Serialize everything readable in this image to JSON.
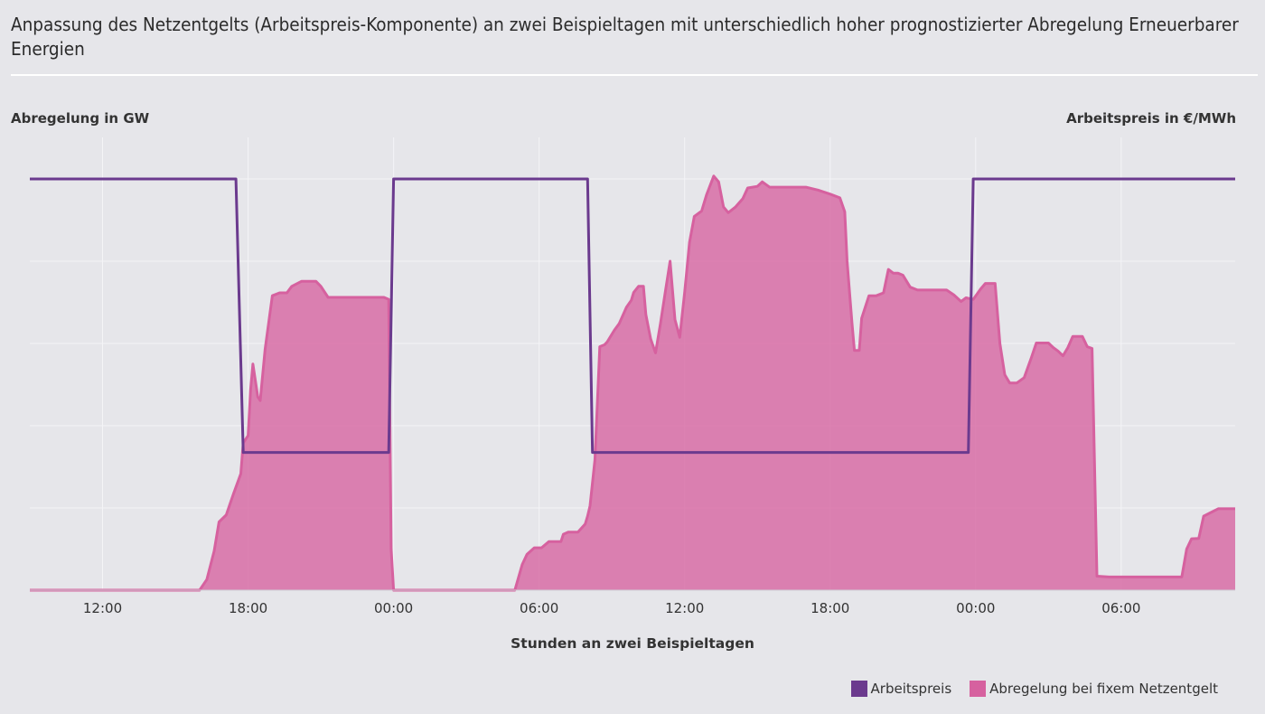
{
  "chart_data": {
    "type": "area",
    "title": "Anpassung des Netzentgelts (Arbeitspreis-Komponente) an zwei Beispieltagen mit unterschiedlich hoher prognostizierter Abregelung Erneuerbarer Energien",
    "xlabel": "Stunden an zwei Beispieltagen",
    "ylabel_left": "Abregelung in GW",
    "ylabel_right": "Arbeitspreis in €/MWh",
    "x_unit": "hours since 00:00 of day 1",
    "xlim": [
      9.0,
      58.7
    ],
    "x_ticks": [
      {
        "x": 12,
        "label": "12:00"
      },
      {
        "x": 18,
        "label": "18:00"
      },
      {
        "x": 24,
        "label": "00:00"
      },
      {
        "x": 30,
        "label": "06:00"
      },
      {
        "x": 36,
        "label": "12:00"
      },
      {
        "x": 42,
        "label": "18:00"
      },
      {
        "x": 48,
        "label": "00:00"
      },
      {
        "x": 54,
        "label": "06:00"
      }
    ],
    "ylim_left": [
      0,
      100
    ],
    "ylim_right": [
      0,
      100
    ],
    "grid": true,
    "legend_position": "bottom-right",
    "series": [
      {
        "name": "Arbeitspreis",
        "type": "line",
        "axis": "right",
        "color": "#6b3a8e",
        "points": [
          [
            9.0,
            100
          ],
          [
            17.5,
            100
          ],
          [
            17.8,
            33.5
          ],
          [
            23.8,
            33.5
          ],
          [
            24.0,
            100
          ],
          [
            32.0,
            100
          ],
          [
            32.2,
            33.5
          ],
          [
            47.7,
            33.5
          ],
          [
            47.9,
            100
          ],
          [
            58.7,
            100
          ]
        ]
      },
      {
        "name": "Abregelung bei fixem Netzentgelt",
        "type": "area",
        "axis": "left",
        "color": "#d6619f",
        "points": [
          [
            9.0,
            0
          ],
          [
            16.0,
            0
          ],
          [
            16.3,
            2.6
          ],
          [
            16.6,
            9.5
          ],
          [
            16.8,
            16.6
          ],
          [
            17.1,
            18.3
          ],
          [
            17.4,
            23.5
          ],
          [
            17.7,
            28.3
          ],
          [
            17.8,
            35.8
          ],
          [
            18.0,
            37.6
          ],
          [
            18.1,
            48.6
          ],
          [
            18.2,
            55.0
          ],
          [
            18.4,
            47.0
          ],
          [
            18.5,
            46.1
          ],
          [
            18.7,
            58.6
          ],
          [
            19.0,
            71.6
          ],
          [
            19.3,
            72.3
          ],
          [
            19.6,
            72.3
          ],
          [
            19.8,
            73.9
          ],
          [
            20.2,
            75.1
          ],
          [
            20.5,
            75.1
          ],
          [
            20.8,
            75.1
          ],
          [
            21.0,
            73.9
          ],
          [
            21.3,
            71.2
          ],
          [
            21.6,
            71.2
          ],
          [
            22.0,
            71.2
          ],
          [
            22.5,
            71.2
          ],
          [
            23.0,
            71.2
          ],
          [
            23.6,
            71.2
          ],
          [
            23.8,
            70.7
          ],
          [
            23.9,
            10.0
          ],
          [
            24.0,
            0
          ],
          [
            29.0,
            0
          ],
          [
            29.3,
            6.2
          ],
          [
            29.5,
            8.7
          ],
          [
            29.8,
            10.3
          ],
          [
            30.1,
            10.3
          ],
          [
            30.4,
            11.8
          ],
          [
            30.6,
            11.8
          ],
          [
            30.9,
            11.8
          ],
          [
            31.0,
            13.6
          ],
          [
            31.2,
            14.1
          ],
          [
            31.6,
            14.1
          ],
          [
            31.9,
            16.1
          ],
          [
            32.0,
            18.0
          ],
          [
            32.1,
            20.5
          ],
          [
            32.3,
            31.7
          ],
          [
            32.5,
            59.2
          ],
          [
            32.7,
            59.7
          ],
          [
            32.8,
            60.3
          ],
          [
            33.1,
            63.2
          ],
          [
            33.3,
            64.8
          ],
          [
            33.6,
            68.8
          ],
          [
            33.8,
            70.5
          ],
          [
            33.9,
            72.4
          ],
          [
            34.1,
            73.9
          ],
          [
            34.3,
            73.9
          ],
          [
            34.4,
            67.0
          ],
          [
            34.6,
            61.1
          ],
          [
            34.8,
            57.7
          ],
          [
            35.0,
            64.8
          ],
          [
            35.2,
            72.4
          ],
          [
            35.4,
            80.0
          ],
          [
            35.6,
            65.8
          ],
          [
            35.8,
            61.5
          ],
          [
            36.0,
            72.4
          ],
          [
            36.2,
            84.6
          ],
          [
            36.4,
            90.9
          ],
          [
            36.7,
            92.2
          ],
          [
            36.9,
            96.1
          ],
          [
            37.2,
            100.7
          ],
          [
            37.4,
            99.3
          ],
          [
            37.6,
            93.2
          ],
          [
            37.8,
            91.8
          ],
          [
            38.1,
            93.2
          ],
          [
            38.4,
            95.2
          ],
          [
            38.6,
            97.8
          ],
          [
            39.0,
            98.2
          ],
          [
            39.2,
            99.3
          ],
          [
            39.5,
            98.0
          ],
          [
            40.0,
            98.0
          ],
          [
            41.0,
            98.0
          ],
          [
            41.5,
            97.3
          ],
          [
            42.0,
            96.3
          ],
          [
            42.4,
            95.4
          ],
          [
            42.6,
            92.0
          ],
          [
            42.7,
            80.0
          ],
          [
            42.9,
            65.0
          ],
          [
            43.0,
            58.3
          ],
          [
            43.2,
            58.3
          ],
          [
            43.3,
            66.1
          ],
          [
            43.6,
            71.6
          ],
          [
            43.9,
            71.6
          ],
          [
            44.2,
            72.3
          ],
          [
            44.4,
            78.0
          ],
          [
            44.6,
            77.1
          ],
          [
            44.8,
            77.1
          ],
          [
            45.0,
            76.6
          ],
          [
            45.3,
            73.7
          ],
          [
            45.6,
            73.0
          ],
          [
            46.0,
            73.0
          ],
          [
            46.4,
            73.0
          ],
          [
            46.8,
            73.0
          ],
          [
            47.1,
            71.8
          ],
          [
            47.4,
            70.2
          ],
          [
            47.6,
            71.1
          ],
          [
            47.9,
            70.7
          ],
          [
            48.2,
            73.2
          ],
          [
            48.4,
            74.6
          ],
          [
            48.6,
            74.6
          ],
          [
            48.8,
            74.6
          ],
          [
            49.0,
            60.0
          ],
          [
            49.2,
            52.4
          ],
          [
            49.4,
            50.4
          ],
          [
            49.7,
            50.4
          ],
          [
            50.0,
            51.7
          ],
          [
            50.3,
            56.6
          ],
          [
            50.5,
            60.1
          ],
          [
            50.8,
            60.1
          ],
          [
            51.0,
            60.1
          ],
          [
            51.2,
            59.0
          ],
          [
            51.4,
            58.1
          ],
          [
            51.6,
            57.0
          ],
          [
            51.8,
            59.0
          ],
          [
            52.0,
            61.7
          ],
          [
            52.2,
            61.7
          ],
          [
            52.4,
            61.7
          ],
          [
            52.6,
            59.2
          ],
          [
            52.8,
            58.8
          ],
          [
            53.0,
            3.4
          ],
          [
            53.5,
            3.2
          ],
          [
            54.0,
            3.2
          ],
          [
            55.0,
            3.2
          ],
          [
            56.0,
            3.2
          ],
          [
            56.5,
            3.2
          ],
          [
            56.7,
            10.0
          ],
          [
            56.9,
            12.5
          ],
          [
            57.2,
            12.6
          ],
          [
            57.4,
            18.0
          ],
          [
            57.7,
            18.9
          ],
          [
            58.0,
            19.8
          ],
          [
            58.7,
            19.8
          ]
        ]
      }
    ]
  }
}
